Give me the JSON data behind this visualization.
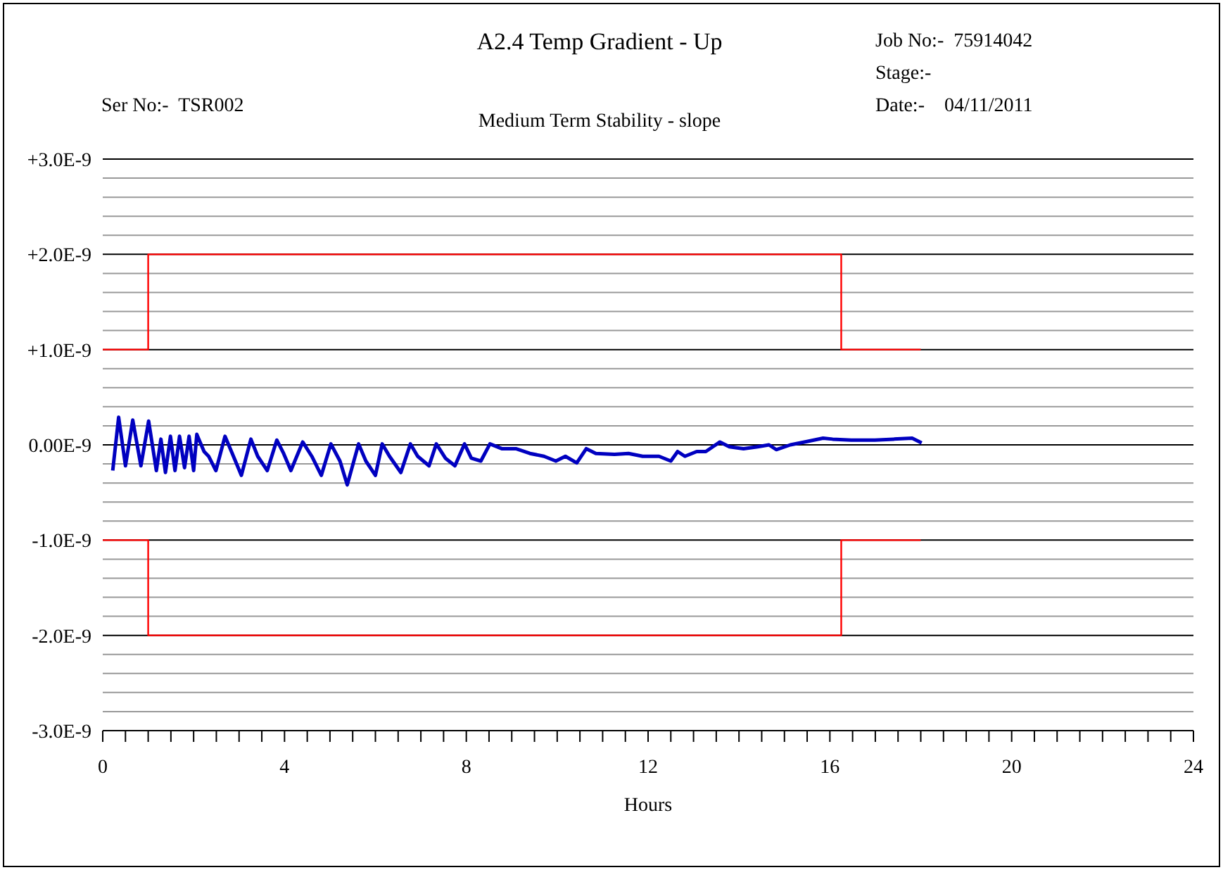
{
  "chart_data": {
    "type": "line",
    "title": "A2.4 Temp Gradient - Up",
    "subtitle": "Medium Term Stability - slope",
    "xlabel": "Hours",
    "annotations": [
      "Ser No:-  TSR002",
      "Job No:-  75914042",
      "Stage:-",
      "Date:-    04/11/2011"
    ],
    "xlim": [
      0,
      24
    ],
    "xticks": [
      0,
      {
        "value": 0.5,
        "label": null
      },
      {
        "value": 1,
        "label": null
      },
      {
        "value": 1.5,
        "label": null
      },
      {
        "value": 2,
        "label": null
      },
      {
        "value": 2.5,
        "label": null
      },
      {
        "value": 3,
        "label": null
      },
      {
        "value": 3.5,
        "label": null
      },
      4,
      {
        "value": 4.5,
        "label": null
      },
      {
        "value": 5,
        "label": null
      },
      {
        "value": 5.5,
        "label": null
      },
      {
        "value": 6,
        "label": null
      },
      {
        "value": 6.5,
        "label": null
      },
      {
        "value": 7,
        "label": null
      },
      {
        "value": 7.5,
        "label": null
      },
      8,
      {
        "value": 8.5,
        "label": null
      },
      {
        "value": 9,
        "label": null
      },
      {
        "value": 9.5,
        "label": null
      },
      {
        "value": 10,
        "label": null
      },
      {
        "value": 10.5,
        "label": null
      },
      {
        "value": 11,
        "label": null
      },
      {
        "value": 11.5,
        "label": null
      },
      12,
      {
        "value": 12.5,
        "label": null
      },
      {
        "value": 13,
        "label": null
      },
      {
        "value": 13.5,
        "label": null
      },
      {
        "value": 14,
        "label": null
      },
      {
        "value": 14.5,
        "label": null
      },
      {
        "value": 15,
        "label": null
      },
      {
        "value": 15.5,
        "label": null
      },
      16,
      {
        "value": 16.5,
        "label": null
      },
      {
        "value": 17,
        "label": null
      },
      {
        "value": 17.5,
        "label": null
      },
      {
        "value": 18,
        "label": null
      },
      {
        "value": 18.5,
        "label": null
      },
      {
        "value": 19,
        "label": null
      },
      {
        "value": 19.5,
        "label": null
      },
      20,
      {
        "value": 20.5,
        "label": null
      },
      {
        "value": 21,
        "label": null
      },
      {
        "value": 21.5,
        "label": null
      },
      {
        "value": 22,
        "label": null
      },
      {
        "value": 22.5,
        "label": null
      },
      {
        "value": 23,
        "label": null
      },
      {
        "value": 23.5,
        "label": null
      },
      24
    ],
    "ylim": [
      -3e-09,
      3e-09
    ],
    "yticks": [
      {
        "value": 3e-09,
        "label": "+3.0E-9"
      },
      {
        "value": 2.8e-09,
        "label": null
      },
      {
        "value": 2.6e-09,
        "label": null
      },
      {
        "value": 2.4e-09,
        "label": null
      },
      {
        "value": 2.2e-09,
        "label": null
      },
      {
        "value": 2e-09,
        "label": "+2.0E-9"
      },
      {
        "value": 1.8e-09,
        "label": null
      },
      {
        "value": 1.6e-09,
        "label": null
      },
      {
        "value": 1.4e-09,
        "label": null
      },
      {
        "value": 1.2e-09,
        "label": null
      },
      {
        "value": 1e-09,
        "label": "+1.0E-9"
      },
      {
        "value": 8e-10,
        "label": null
      },
      {
        "value": 6e-10,
        "label": null
      },
      {
        "value": 4e-10,
        "label": null
      },
      {
        "value": 2e-10,
        "label": null
      },
      {
        "value": 0,
        "label": "0.00E-9"
      },
      {
        "value": -2e-10,
        "label": null
      },
      {
        "value": -4e-10,
        "label": null
      },
      {
        "value": -6e-10,
        "label": null
      },
      {
        "value": -8e-10,
        "label": null
      },
      {
        "value": -1e-09,
        "label": "-1.0E-9"
      },
      {
        "value": -1.2e-09,
        "label": null
      },
      {
        "value": -1.4e-09,
        "label": null
      },
      {
        "value": -1.6e-09,
        "label": null
      },
      {
        "value": -1.8e-09,
        "label": null
      },
      {
        "value": -2e-09,
        "label": "-2.0E-9"
      },
      {
        "value": -2.2e-09,
        "label": null
      },
      {
        "value": -2.4e-09,
        "label": null
      },
      {
        "value": -2.6e-09,
        "label": null
      },
      {
        "value": -2.8e-09,
        "label": null
      },
      {
        "value": -3e-09,
        "label": "-3.0E-9"
      }
    ],
    "grid": "y",
    "marker": "none",
    "line_style": "solid",
    "series": [
      {
        "type": "step",
        "color": "#ff0000",
        "x": [
          0,
          1,
          16.25,
          18
        ],
        "values": [
          1e-09,
          2e-09,
          1e-09,
          1e-09
        ]
      },
      {
        "type": "step",
        "color": "#ff0000",
        "x": [
          0,
          1,
          16.25,
          18
        ],
        "values": [
          -1e-09,
          -2e-09,
          -1e-09,
          -1e-09
        ]
      },
      {
        "color": "#0000c0",
        "x": [
          0.22,
          0.35,
          0.5,
          0.66,
          0.84,
          1.01,
          1.18,
          1.28,
          1.38,
          1.49,
          1.59,
          1.69,
          1.8,
          1.9,
          2.0,
          2.07,
          2.23,
          2.33,
          2.49,
          2.69,
          2.85,
          3.05,
          3.26,
          3.41,
          3.62,
          3.83,
          3.98,
          4.14,
          4.4,
          4.6,
          4.81,
          5.02,
          5.22,
          5.38,
          5.63,
          5.79,
          6.0,
          6.15,
          6.31,
          6.56,
          6.77,
          6.93,
          7.18,
          7.34,
          7.54,
          7.75,
          7.96,
          8.11,
          8.32,
          8.52,
          8.78,
          9.09,
          9.4,
          9.71,
          9.97,
          10.18,
          10.43,
          10.64,
          10.85,
          11.26,
          11.57,
          11.88,
          12.24,
          12.5,
          12.65,
          12.81,
          13.07,
          13.27,
          13.58,
          13.79,
          14.1,
          14.41,
          14.66,
          14.82,
          15.13,
          15.44,
          15.85,
          16.06,
          16.47,
          16.99,
          17.4,
          17.81,
          18.02
        ],
        "values": [
          -2.7e-10,
          2.9e-10,
          -2.2e-10,
          2.6e-10,
          -2.2e-10,
          2.5e-10,
          -2.7e-10,
          6e-11,
          -2.9e-10,
          9e-11,
          -2.7e-10,
          9e-11,
          -2.4e-10,
          9e-11,
          -2.7e-10,
          1.1e-10,
          -7e-11,
          -1.2e-10,
          -2.7e-10,
          9e-11,
          -9e-11,
          -3.2e-10,
          6e-11,
          -1.2e-10,
          -2.7e-10,
          5e-11,
          -9e-11,
          -2.7e-10,
          3e-11,
          -1.2e-10,
          -3.2e-10,
          1e-11,
          -1.7e-10,
          -4.2e-10,
          1e-11,
          -1.7e-10,
          -3.2e-10,
          1e-11,
          -1.2e-10,
          -2.9e-10,
          1e-11,
          -1.2e-10,
          -2.2e-10,
          1e-11,
          -1.4e-10,
          -2.2e-10,
          1e-11,
          -1.4e-10,
          -1.7e-10,
          1e-11,
          -4e-11,
          -4e-11,
          -9e-11,
          -1.2e-10,
          -1.7e-10,
          -1.2e-10,
          -1.9e-10,
          -4e-11,
          -9e-11,
          -1e-10,
          -9e-11,
          -1.2e-10,
          -1.2e-10,
          -1.7e-10,
          -7e-11,
          -1.2e-10,
          -7e-11,
          -7e-11,
          3e-11,
          -2e-11,
          -4e-11,
          -2e-11,
          0,
          -5e-11,
          0,
          3e-11,
          7e-11,
          6e-11,
          5e-11,
          5e-11,
          6e-11,
          7e-11,
          2e-11
        ]
      }
    ]
  }
}
